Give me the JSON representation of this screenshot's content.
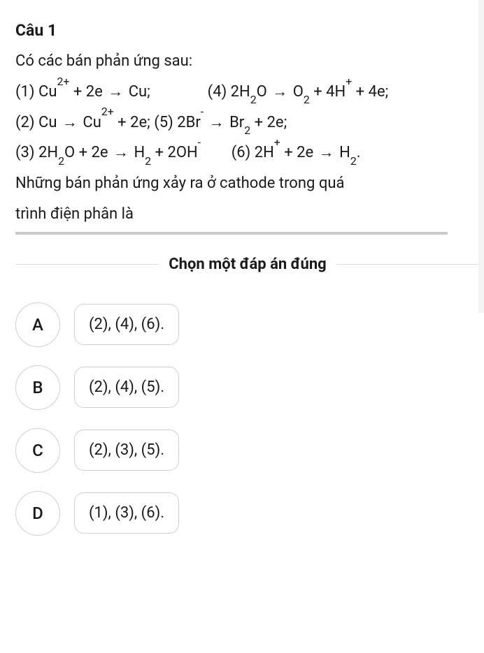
{
  "colors": {
    "text": "#1a1a1a",
    "border": "#d0d0d0",
    "underline": "#c9c9c9",
    "divider": "#dcdcdc",
    "rail": "#f3f3f3",
    "background": "#ffffff"
  },
  "typography": {
    "title_fontsize": 23,
    "body_fontsize": 22,
    "option_fontsize": 22,
    "badge_fontsize": 24,
    "title_weight": 700,
    "prompt_weight": 700
  },
  "question": {
    "number_label": "Câu 1",
    "intro": "Có các bán phản ứng sau:",
    "lines": {
      "l1a": "(1) Cu",
      "l1b": " + 2e ",
      "l1c": " Cu;",
      "l1_gap": "               ",
      "l1d": "(4) 2H",
      "l1e": "O ",
      "l1f": " O",
      "l1g": " + 4H",
      "l1h": " + 4e;",
      "l2a": "(2) Cu ",
      "l2b": " Cu",
      "l2c": " + 2e; (5) 2Br",
      "l2d": " ",
      "l2e": " Br",
      "l2f": " + 2e;",
      "l3a": "(3) 2H",
      "l3b": "O + 2e ",
      "l3c": " H",
      "l3d": " + 2OH",
      "l3_gap": "        ",
      "l3e": "(6) 2H",
      "l3f": " + 2e ",
      "l3g": " H",
      "l3h": ".",
      "ask1": "Những bán phản ứng xảy ra ở cathode trong quá",
      "ask2": "trình điện phân là"
    },
    "superscripts": {
      "two_plus": "2+",
      "plus": "+",
      "minus": "-"
    },
    "subscripts": {
      "two": "2"
    },
    "arrow_glyph": "→"
  },
  "prompt": "Chọn một đáp án đúng",
  "options": [
    {
      "letter": "A",
      "text": "(2), (4), (6)."
    },
    {
      "letter": "B",
      "text": "(2), (4), (5)."
    },
    {
      "letter": "C",
      "text": "(2), (3), (5)."
    },
    {
      "letter": "D",
      "text": "(1), (3), (6)."
    }
  ]
}
